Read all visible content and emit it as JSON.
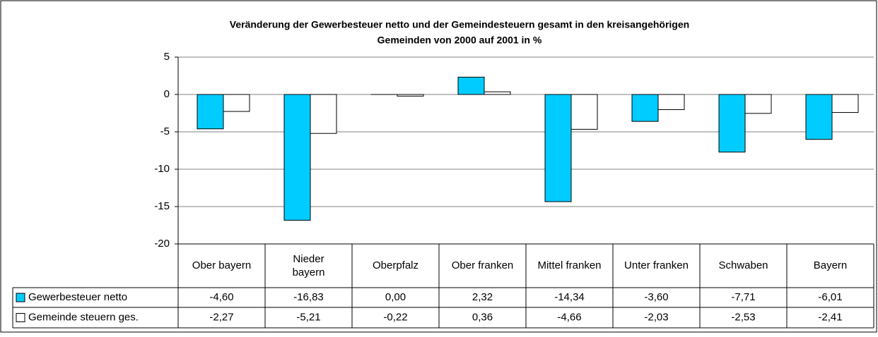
{
  "chart_data": {
    "type": "bar",
    "title": "Veränderung der Gewerbesteuer netto und der Gemeindesteuern gesamt in den kreisangehörigen",
    "subtitle": "Gemeinden von 2000 auf 2001 in %",
    "categories": [
      "Ober bayern",
      "Nieder bayern",
      "Oberpfalz",
      "Ober franken",
      "Mittel franken",
      "Unter franken",
      "Schwaben",
      "Bayern"
    ],
    "series": [
      {
        "name": "Gewerbesteuer netto",
        "color": "#00ccff",
        "values": [
          -4.6,
          -16.83,
          0.0,
          2.32,
          -14.34,
          -3.6,
          -7.71,
          -6.01
        ],
        "value_labels": [
          "-4,60",
          "-16,83",
          "0,00",
          "2,32",
          "-14,34",
          "-3,60",
          "-7,71",
          "-6,01"
        ]
      },
      {
        "name": "Gemeinde steuern ges.",
        "color": "#ffffff",
        "values": [
          -2.27,
          -5.21,
          -0.22,
          0.36,
          -4.66,
          -2.03,
          -2.53,
          -2.41
        ],
        "value_labels": [
          "-2,27",
          "-5,21",
          "-0,22",
          "0,36",
          "-4,66",
          "-2,03",
          "-2,53",
          "-2,41"
        ]
      }
    ],
    "ylim": [
      -20,
      5
    ],
    "yticks": [
      5,
      0,
      -5,
      -10,
      -15,
      -20
    ],
    "grid": true
  }
}
